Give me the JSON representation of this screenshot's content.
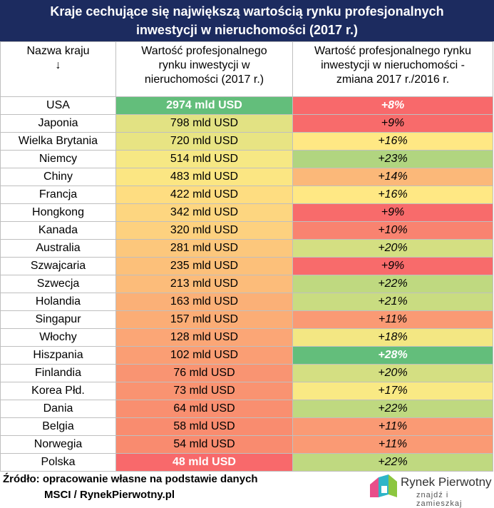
{
  "header": {
    "title_lines": [
      "Kraje cechujące się największą wartością rynku profesjonalnych",
      "inwestycji w nieruchomości (2017 r.)"
    ]
  },
  "table": {
    "columns": [
      [
        "Nazwa kraju",
        "↓"
      ],
      [
        "Wartość profesjonalnego",
        "rynku inwestycji w",
        "nieruchomości (2017 r.)"
      ],
      [
        "Wartość profesjonalnego rynku",
        "inwestycji w nieruchomości -",
        "zmiana 2017 r./2016 r."
      ]
    ],
    "rows": [
      [
        "USA",
        "2974 mld USD",
        "+8%"
      ],
      [
        "Japonia",
        "798 mld USD",
        "+9%"
      ],
      [
        "Wielka Brytania",
        "720 mld USD",
        "+16%"
      ],
      [
        "Niemcy",
        "514 mld USD",
        "+23%"
      ],
      [
        "Chiny",
        "483 mld USD",
        "+14%"
      ],
      [
        "Francja",
        "422 mld USD",
        "+16%"
      ],
      [
        "Hongkong",
        "342 mld USD",
        "+9%"
      ],
      [
        "Kanada",
        "320 mld USD",
        "+10%"
      ],
      [
        "Australia",
        "281 mld USD",
        "+20%"
      ],
      [
        "Szwajcaria",
        "235 mld USD",
        "+9%"
      ],
      [
        "Szwecja",
        "213 mld USD",
        "+22%"
      ],
      [
        "Holandia",
        "163 mld USD",
        "+21%"
      ],
      [
        "Singapur",
        "157 mld USD",
        "+11%"
      ],
      [
        "Włochy",
        "128 mld USD",
        "+18%"
      ],
      [
        "Hiszpania",
        "102 mld USD",
        "+28%"
      ],
      [
        "Finlandia",
        "76 mld USD",
        "+20%"
      ],
      [
        "Korea Płd.",
        "73 mld USD",
        "+17%"
      ],
      [
        "Dania",
        "64 mld USD",
        "+22%"
      ],
      [
        "Belgia",
        "58 mld USD",
        "+11%"
      ],
      [
        "Norwegia",
        "54 mld USD",
        "+11%"
      ],
      [
        "Polska",
        "48 mld USD",
        "+22%"
      ]
    ],
    "value_colors": [
      "#63be7b",
      "#e2e283",
      "#e8e483",
      "#f6e884",
      "#fbe683",
      "#fedd81",
      "#fdd680",
      "#fdd17f",
      "#fcc77c",
      "#fcc07a",
      "#fcbc7a",
      "#fbb077",
      "#fbad76",
      "#fba676",
      "#fa9e74",
      "#f99472",
      "#f99371",
      "#f98f70",
      "#f98c6f",
      "#f98b6f",
      "#f8696b"
    ],
    "change_colors": [
      "#f8696b",
      "#f86b6b",
      "#ffe884",
      "#b1d580",
      "#fbb879",
      "#ffe884",
      "#f86b6b",
      "#f98370",
      "#d4df82",
      "#f86b6b",
      "#bfd980",
      "#c9dc81",
      "#fa9a74",
      "#f3e783",
      "#63be7b",
      "#d4df82",
      "#f9e984",
      "#bfd980",
      "#fa9a74",
      "#fa9a74",
      "#bfd980"
    ]
  },
  "footer": {
    "source_lines": [
      "Źródło: opracowanie własne na podstawie danych",
      "MSCI / RynekPierwotny.pl"
    ],
    "brand": "Rynek Pierwotny",
    "slogan": "znajdź i zamieszkaj"
  }
}
